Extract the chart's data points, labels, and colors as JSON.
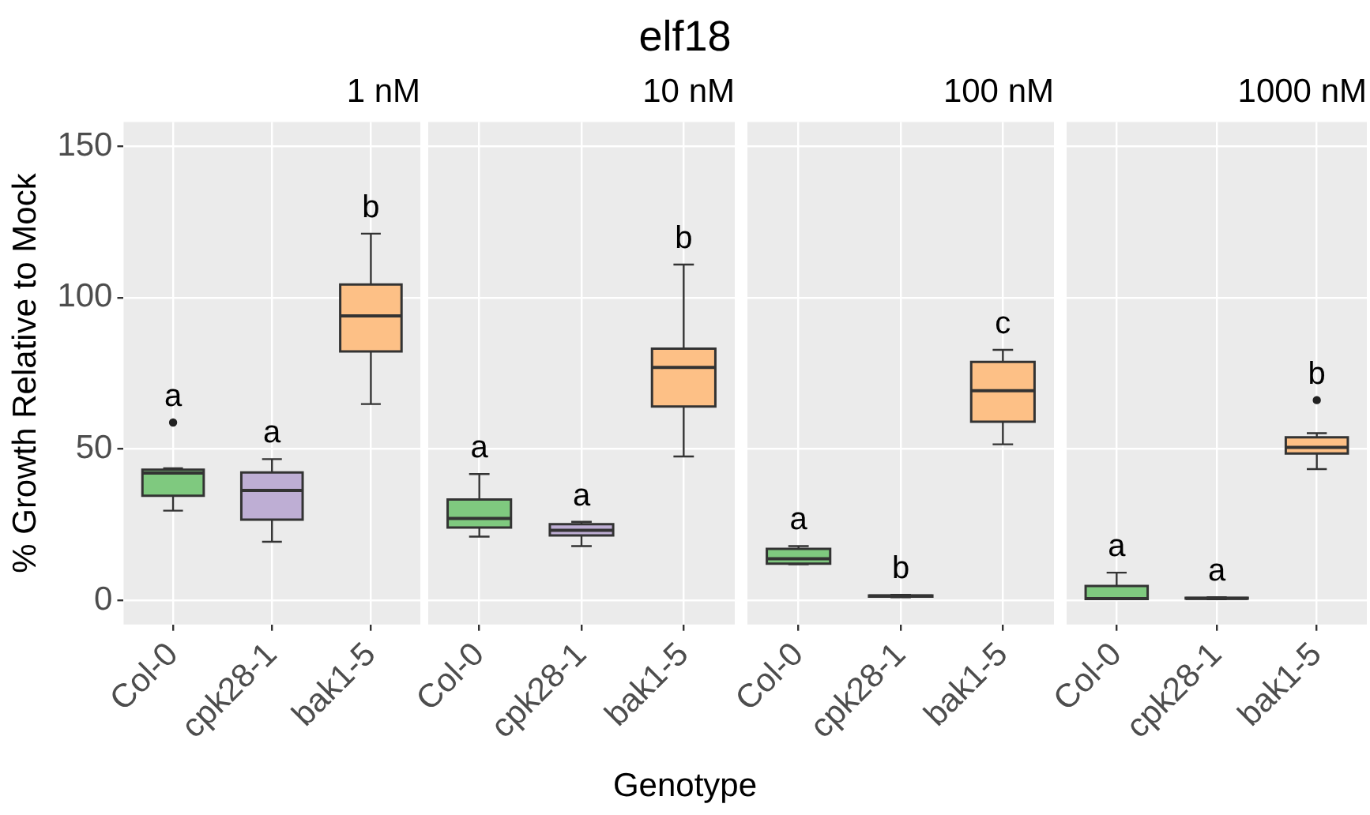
{
  "chart_data": [
    {
      "type": "box",
      "subtitle": "1 nM",
      "xlabel": "Genotype",
      "ylabel": "% Growth Relative to Mock",
      "categories": [
        "Col-0",
        "cpk28-1",
        "bak1-5"
      ],
      "colors": [
        "#7fc97f",
        "#beaed4",
        "#fdc086"
      ],
      "ylim": [
        -8,
        158
      ],
      "yticks": [
        0,
        50,
        100,
        150
      ],
      "grid": true,
      "boxes": [
        {
          "low": 29.6,
          "q1": 34.5,
          "median": 42,
          "q3": 43.1,
          "high": 43.6,
          "outliers": [
            58.7
          ]
        },
        {
          "low": 19.3,
          "q1": 26.6,
          "median": 36.3,
          "q3": 42.2,
          "high": 46.6
        },
        {
          "low": 64.8,
          "q1": 82.2,
          "median": 93.9,
          "q3": 104.3,
          "high": 121.1
        }
      ],
      "annotations": [
        "a",
        "a",
        "b",
        "elf18"
      ]
    },
    {
      "type": "box",
      "subtitle": "10 nM",
      "categories": [
        "Col-0",
        "cpk28-1",
        "bak1-5"
      ],
      "colors": [
        "#7fc97f",
        "#beaed4",
        "#fdc086"
      ],
      "ylim": [
        -8,
        158
      ],
      "yticks": [
        0,
        50,
        100,
        150
      ],
      "grid": true,
      "tick_labels": "x",
      "boxes": [
        {
          "low": 21,
          "q1": 24,
          "median": 27,
          "q3": 33.3,
          "high": 41.7
        },
        {
          "low": 17.9,
          "q1": 21.4,
          "median": 23.1,
          "q3": 25.1,
          "high": 25.9
        },
        {
          "low": 47.5,
          "q1": 64,
          "median": 76.9,
          "q3": 83.1,
          "high": 110.9
        }
      ],
      "annotations": [
        "a",
        "a",
        "b"
      ]
    },
    {
      "type": "box",
      "subtitle": "100 nM",
      "categories": [
        "Col-0",
        "cpk28-1",
        "bak1-5"
      ],
      "colors": [
        "#7fc97f",
        "#beaed4",
        "#fdc086"
      ],
      "ylim": [
        -8,
        158
      ],
      "yticks": [
        0,
        50,
        100,
        150
      ],
      "grid": true,
      "tick_labels": "x",
      "boxes": [
        {
          "low": 11.9,
          "q1": 12.1,
          "median": 13.7,
          "q3": 17,
          "high": 17.9
        },
        {
          "low": 1,
          "q1": 1.2,
          "median": 1.4,
          "q3": 1.6,
          "high": 1.8
        },
        {
          "low": 51.5,
          "q1": 59,
          "median": 69.2,
          "q3": 78.7,
          "high": 82.7
        }
      ],
      "annotations": [
        "a",
        "b",
        "c"
      ]
    },
    {
      "type": "box",
      "subtitle": "1000 nM",
      "categories": [
        "Col-0",
        "cpk28-1",
        "bak1-5"
      ],
      "colors": [
        "#7fc97f",
        "#beaed4",
        "#fdc086"
      ],
      "ylim": [
        -8,
        158
      ],
      "yticks": [
        0,
        50,
        100,
        150
      ],
      "grid": true,
      "tick_labels": "x",
      "boxes": [
        {
          "low": 0.4,
          "q1": 0.4,
          "median": 0.5,
          "q3": 4.7,
          "high": 9.1
        },
        {
          "low": 0.3,
          "q1": 0.5,
          "median": 0.6,
          "q3": 0.8,
          "high": 1
        },
        {
          "low": 43.3,
          "q1": 48.5,
          "median": 50.5,
          "q3": 53.8,
          "high": 55.2,
          "outliers": [
            66.1
          ]
        }
      ],
      "annotations": [
        "a",
        "a",
        "b"
      ]
    }
  ]
}
